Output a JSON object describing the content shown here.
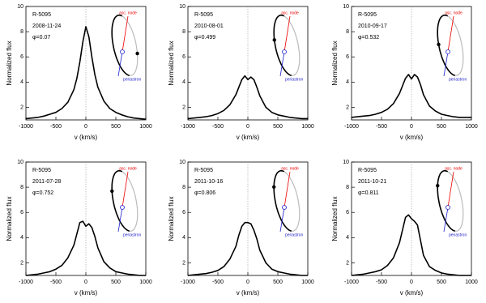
{
  "chart_data": [
    {
      "type": "line",
      "title": "R-5095",
      "subtitle": "2008-11-24",
      "annotation": "φ=0.07",
      "orbit_labels": [
        "asc. node",
        "periastron"
      ],
      "xlabel": "v (km/s)",
      "ylabel": "Normalized flux",
      "color": "#000000",
      "xlim": [
        -1000,
        1000
      ],
      "ylim": [
        1,
        10
      ],
      "xticks": [
        -1000,
        -500,
        0,
        500,
        1000
      ],
      "yticks": [
        2,
        4,
        6,
        8,
        10
      ],
      "vline": 0,
      "x": [
        -1000,
        -900,
        -800,
        -700,
        -600,
        -500,
        -400,
        -300,
        -200,
        -150,
        -100,
        -50,
        0,
        50,
        100,
        150,
        200,
        300,
        400,
        500,
        600,
        700,
        800,
        900,
        1000
      ],
      "values": [
        1.1,
        1.15,
        1.2,
        1.3,
        1.45,
        1.6,
        1.9,
        2.4,
        3.4,
        4.3,
        5.6,
        7.2,
        8.4,
        7.6,
        6.0,
        4.6,
        3.6,
        2.5,
        1.9,
        1.6,
        1.4,
        1.25,
        1.15,
        1.1,
        1.05
      ]
    },
    {
      "type": "line",
      "title": "R-5095",
      "subtitle": "2010-08-01",
      "annotation": "φ=0.499",
      "orbit_labels": [
        "asc. node",
        "periastron"
      ],
      "xlabel": "v (km/s)",
      "ylabel": "Normalized flux",
      "color": "#000000",
      "xlim": [
        -1000,
        1000
      ],
      "ylim": [
        1,
        10
      ],
      "xticks": [
        -1000,
        -500,
        0,
        500,
        1000
      ],
      "yticks": [
        2,
        4,
        6,
        8,
        10
      ],
      "vline": 0,
      "x": [
        -1000,
        -900,
        -800,
        -700,
        -600,
        -500,
        -400,
        -300,
        -200,
        -150,
        -100,
        -50,
        0,
        50,
        100,
        150,
        200,
        300,
        400,
        500,
        600,
        700,
        800,
        900,
        1000
      ],
      "values": [
        1.1,
        1.15,
        1.2,
        1.25,
        1.35,
        1.5,
        1.75,
        2.2,
        3.0,
        3.6,
        4.2,
        4.5,
        4.2,
        4.4,
        4.2,
        3.6,
        2.9,
        2.0,
        1.6,
        1.4,
        1.3,
        1.2,
        1.15,
        1.1,
        1.1
      ]
    },
    {
      "type": "line",
      "title": "R-5095",
      "subtitle": "2010-09-17",
      "annotation": "φ=0.532",
      "orbit_labels": [
        "asc. node",
        "periastron"
      ],
      "xlabel": "v (km/s)",
      "ylabel": "Normalized flux",
      "color": "#000000",
      "xlim": [
        -1000,
        1000
      ],
      "ylim": [
        1,
        10
      ],
      "xticks": [
        -1000,
        -500,
        0,
        500,
        1000
      ],
      "yticks": [
        2,
        4,
        6,
        8,
        10
      ],
      "vline": 0,
      "x": [
        -1000,
        -900,
        -800,
        -700,
        -600,
        -500,
        -400,
        -300,
        -200,
        -150,
        -100,
        -50,
        0,
        50,
        100,
        150,
        200,
        300,
        400,
        500,
        600,
        700,
        800,
        900,
        1000
      ],
      "values": [
        1.2,
        1.25,
        1.3,
        1.35,
        1.45,
        1.6,
        1.85,
        2.3,
        3.1,
        3.7,
        4.3,
        4.6,
        4.25,
        4.6,
        4.4,
        3.8,
        3.0,
        2.1,
        1.7,
        1.45,
        1.35,
        1.25,
        1.2,
        1.2,
        1.2
      ]
    },
    {
      "type": "line",
      "title": "R-5095",
      "subtitle": "2011-07-28",
      "annotation": "φ=0.752",
      "orbit_labels": [
        "asc. node",
        "periastron"
      ],
      "xlabel": "v (km/s)",
      "ylabel": "Normalized flux",
      "color": "#000000",
      "xlim": [
        -1000,
        1000
      ],
      "ylim": [
        1,
        10
      ],
      "xticks": [
        -1000,
        -500,
        0,
        500,
        1000
      ],
      "yticks": [
        2,
        4,
        6,
        8,
        10
      ],
      "vline": 0,
      "x": [
        -1000,
        -900,
        -800,
        -700,
        -600,
        -500,
        -400,
        -300,
        -200,
        -150,
        -100,
        -50,
        0,
        50,
        100,
        150,
        200,
        300,
        400,
        500,
        600,
        700,
        800,
        900,
        1000
      ],
      "values": [
        1.0,
        1.05,
        1.1,
        1.2,
        1.3,
        1.5,
        1.8,
        2.4,
        3.4,
        4.3,
        5.2,
        5.3,
        4.9,
        5.1,
        4.8,
        4.1,
        3.2,
        2.1,
        1.6,
        1.3,
        1.2,
        1.1,
        1.05,
        1.0,
        1.0
      ]
    },
    {
      "type": "line",
      "title": "R-5095",
      "subtitle": "2011-10-16",
      "annotation": "φ=0.806",
      "orbit_labels": [
        "asc. node",
        "periastron"
      ],
      "xlabel": "v (km/s)",
      "ylabel": "Normalized flux",
      "color": "#000000",
      "xlim": [
        -1000,
        1000
      ],
      "ylim": [
        1,
        10
      ],
      "xticks": [
        -1000,
        -500,
        0,
        500,
        1000
      ],
      "yticks": [
        2,
        4,
        6,
        8,
        10
      ],
      "vline": 0,
      "x": [
        -1000,
        -900,
        -800,
        -700,
        -600,
        -500,
        -400,
        -300,
        -200,
        -150,
        -100,
        -50,
        0,
        50,
        100,
        150,
        200,
        300,
        400,
        500,
        600,
        700,
        800,
        900,
        1000
      ],
      "values": [
        1.0,
        1.05,
        1.1,
        1.15,
        1.25,
        1.4,
        1.7,
        2.3,
        3.3,
        4.2,
        4.9,
        5.2,
        5.2,
        5.1,
        4.6,
        3.9,
        3.0,
        2.0,
        1.5,
        1.3,
        1.2,
        1.1,
        1.05,
        1.0,
        1.0
      ]
    },
    {
      "type": "line",
      "title": "R-5095",
      "subtitle": "2011-10-21",
      "annotation": "φ=0.811",
      "orbit_labels": [
        "asc. node",
        "periastron"
      ],
      "xlabel": "v (km/s)",
      "ylabel": "Normalized flux",
      "color": "#000000",
      "xlim": [
        -1000,
        1000
      ],
      "ylim": [
        1,
        10
      ],
      "xticks": [
        -1000,
        -500,
        0,
        500,
        1000
      ],
      "yticks": [
        2,
        4,
        6,
        8,
        10
      ],
      "vline": 0,
      "x": [
        -1000,
        -900,
        -800,
        -700,
        -600,
        -500,
        -400,
        -300,
        -200,
        -150,
        -100,
        -50,
        0,
        50,
        100,
        150,
        200,
        300,
        400,
        500,
        600,
        700,
        800,
        900,
        1000
      ],
      "values": [
        1.0,
        1.05,
        1.1,
        1.2,
        1.3,
        1.45,
        1.8,
        2.4,
        3.6,
        4.6,
        5.6,
        5.8,
        5.5,
        5.3,
        5.0,
        3.8,
        2.6,
        1.7,
        1.4,
        1.2,
        1.1,
        1.05,
        1.0,
        1.0,
        1.0
      ]
    }
  ]
}
